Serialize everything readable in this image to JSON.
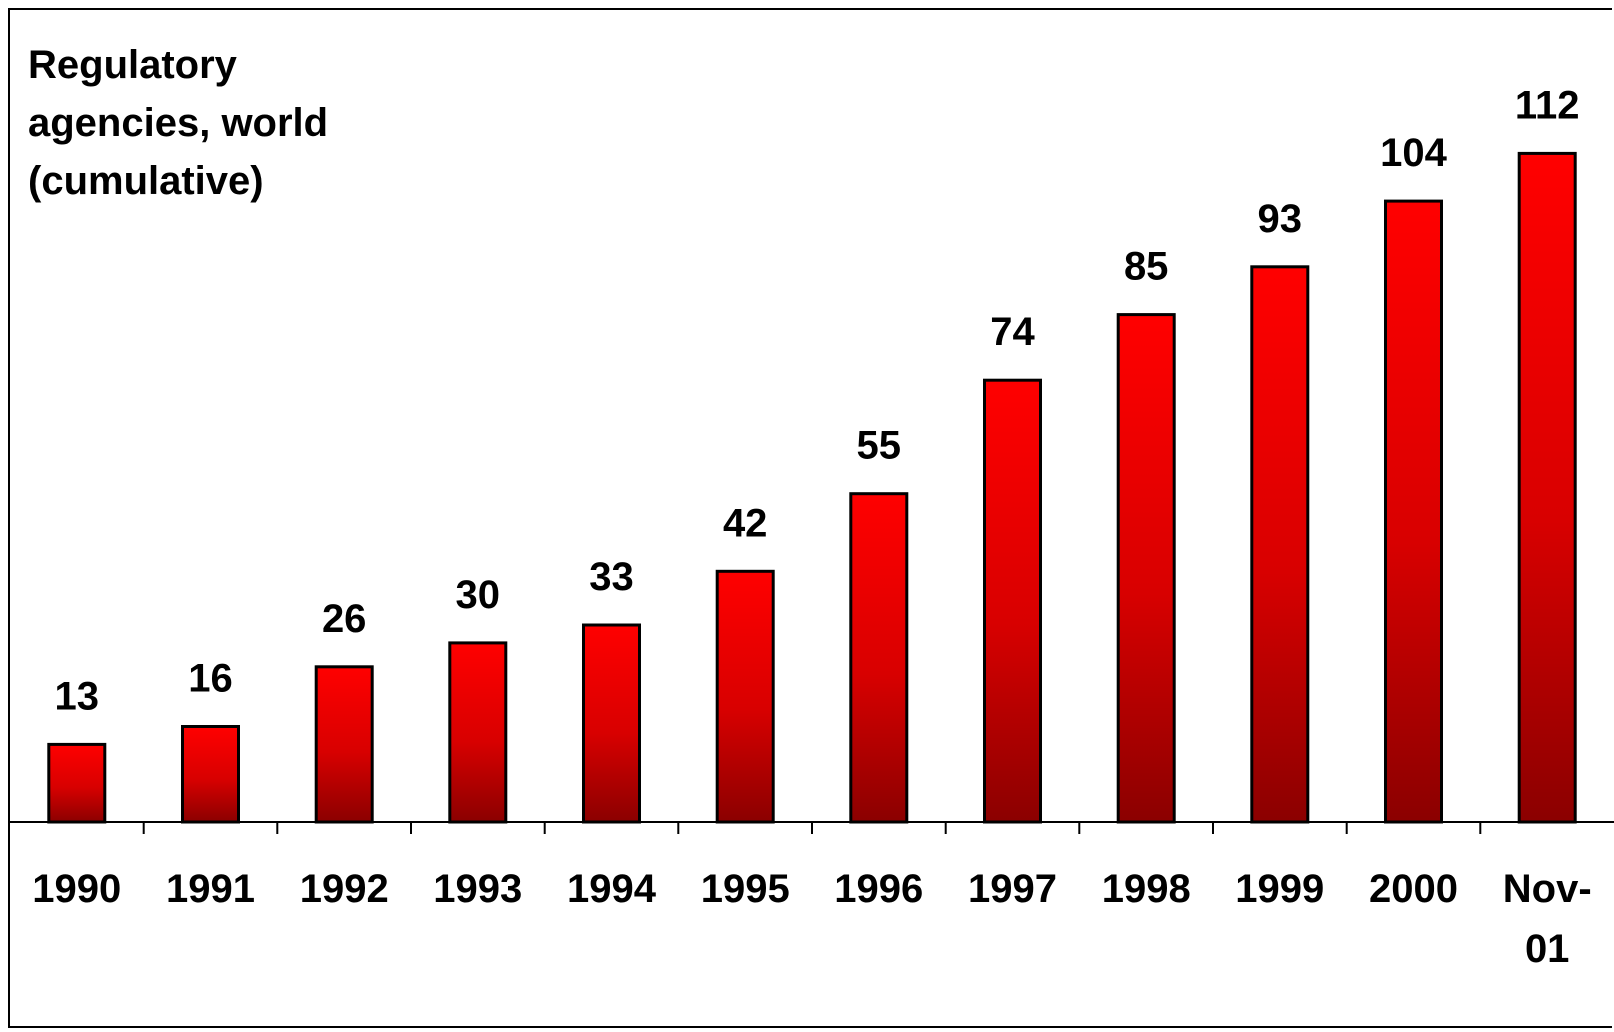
{
  "chart_data": {
    "type": "bar",
    "title_lines": [
      "Regulatory",
      "agencies, world",
      "(cumulative)"
    ],
    "categories": [
      "1990",
      "1991",
      "1992",
      "1993",
      "1994",
      "1995",
      "1996",
      "1997",
      "1998",
      "1999",
      "2000",
      "Nov-01"
    ],
    "values": [
      13,
      16,
      26,
      30,
      33,
      42,
      55,
      74,
      85,
      93,
      104,
      112
    ],
    "xlabel": "",
    "ylabel": "",
    "ylim": [
      0,
      130
    ],
    "grid": false,
    "legend": "none",
    "colors": {
      "bar_top": "#ff0000",
      "bar_bottom": "#8b0000",
      "bar_stroke": "#000000"
    }
  }
}
